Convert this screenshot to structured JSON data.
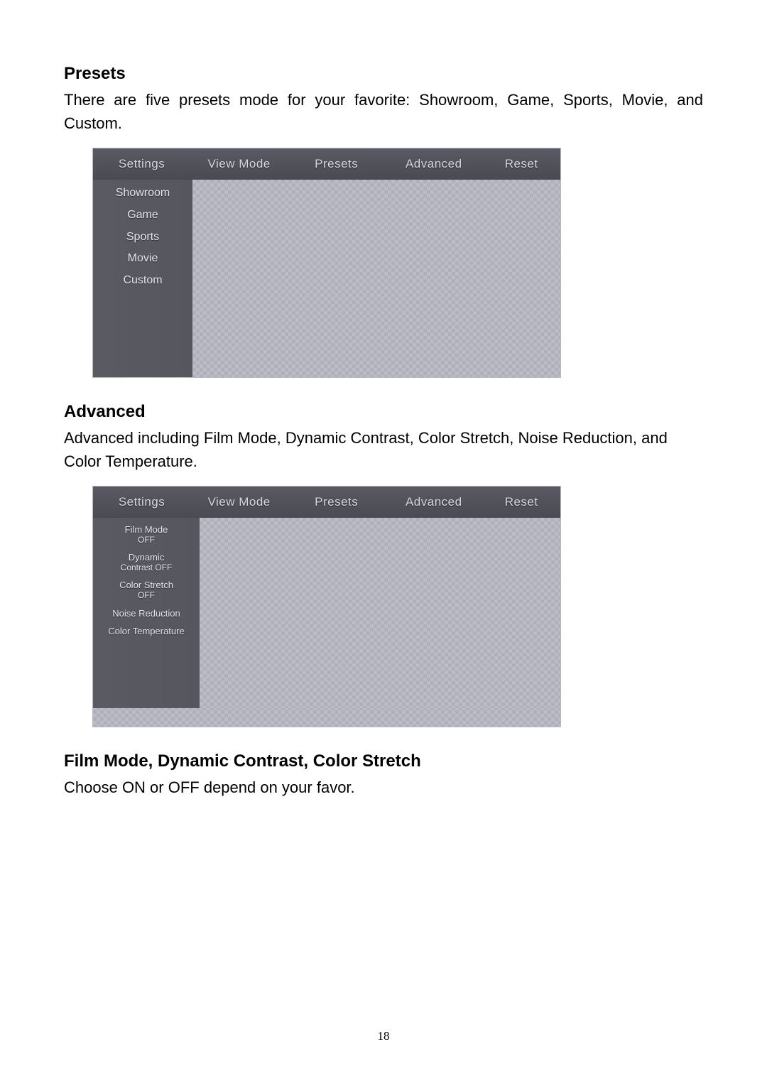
{
  "sections": {
    "presets": {
      "heading": "Presets",
      "text": "There are five presets mode for your favorite: Showroom, Game, Sports, Movie, and Custom."
    },
    "advanced": {
      "heading": "Advanced",
      "text": "Advanced including Film Mode, Dynamic Contrast, Color Stretch, Noise Reduction, and Color Temperature."
    },
    "filmmode": {
      "heading": "Film Mode, Dynamic Contrast, Color Stretch",
      "text": "Choose ON or OFF depend on your favor."
    }
  },
  "tabs": {
    "settings": "Settings",
    "viewmode": "View Mode",
    "presets": "Presets",
    "advanced": "Advanced",
    "reset": "Reset"
  },
  "presets_menu": {
    "items": {
      "showroom": "Showroom",
      "game": "Game",
      "sports": "Sports",
      "movie": "Movie",
      "custom": "Custom"
    }
  },
  "advanced_menu": {
    "items": {
      "filmmode": {
        "label": "Film Mode",
        "value": "OFF"
      },
      "dynamic": {
        "label": "Dynamic",
        "value": "Contrast OFF"
      },
      "colorstretch": {
        "label": "Color Stretch",
        "value": "OFF"
      },
      "noise": {
        "label": "Noise Reduction"
      },
      "colortemp": {
        "label": "Color Temperature"
      }
    }
  },
  "page_number": "18",
  "colors": {
    "heading": "#000000",
    "body_text": "#000000",
    "tab_bg_top": "#5a5a63",
    "tab_bg_bottom": "#4a4a52",
    "tab_text": "#d8d8e0",
    "sidebar_bg": "#56565e",
    "sidebar_text": "#e4e4ea",
    "checker_light": "#bcbcc4",
    "checker_dark": "#b0b0ba",
    "border": "#b8b8c4"
  },
  "typography": {
    "heading_size_pt": 18,
    "body_size_pt": 16,
    "tab_size_pt": 13,
    "sidebar_size_pt": 12,
    "sidebar_small_pt": 10
  }
}
